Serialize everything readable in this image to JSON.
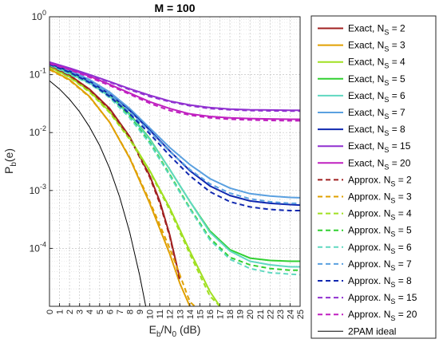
{
  "chart_data": {
    "type": "line",
    "title": "M = 100",
    "xlabel": {
      "main": "E",
      "sub1": "b",
      "mid": "/N",
      "sub2": "0",
      "tail": " (dB)"
    },
    "ylabel": {
      "main": "P",
      "sub": "b",
      "tail": "(e)"
    },
    "xlim": [
      0,
      25
    ],
    "ylim": [
      1e-05,
      1
    ],
    "yscale": "log",
    "grid": true,
    "legend_position": "outside-right",
    "x_ticks": [
      "0",
      "1",
      "2",
      "3",
      "4",
      "5",
      "6",
      "7",
      "8",
      "9",
      "10",
      "11",
      "12",
      "13",
      "14",
      "15",
      "16",
      "17",
      "18",
      "19",
      "20",
      "21",
      "22",
      "23",
      "24",
      "25"
    ],
    "y_ticks": [
      {
        "base": "10",
        "exp": "0",
        "value": 1
      },
      {
        "base": "10",
        "exp": "-1",
        "value": 0.1
      },
      {
        "base": "10",
        "exp": "-2",
        "value": 0.01
      },
      {
        "base": "10",
        "exp": "-3",
        "value": 0.001
      },
      {
        "base": "10",
        "exp": "-4",
        "value": 0.0001
      }
    ],
    "series": [
      {
        "name": {
          "main": "Exact,  N",
          "sub": "S",
          "tail": " = 2"
        },
        "color": "#a02020",
        "dash": false,
        "width": 2,
        "x": [
          0,
          2,
          4,
          6,
          8,
          10,
          11,
          12,
          13
        ],
        "y": [
          0.145,
          0.098,
          0.056,
          0.026,
          0.0085,
          0.0018,
          0.00065,
          0.00017,
          3e-05
        ]
      },
      {
        "name": {
          "main": "Exact,  N",
          "sub": "S",
          "tail": " = 3"
        },
        "color": "#e0a000",
        "dash": false,
        "width": 2,
        "x": [
          0,
          2,
          4,
          6,
          8,
          10,
          12,
          13,
          14
        ],
        "y": [
          0.125,
          0.082,
          0.042,
          0.015,
          0.0036,
          0.0006,
          8e-05,
          2.5e-05,
          1e-05
        ]
      },
      {
        "name": {
          "main": "Exact,  N",
          "sub": "S",
          "tail": " = 4"
        },
        "color": "#a0e020",
        "dash": false,
        "width": 2,
        "x": [
          0,
          2,
          4,
          6,
          8,
          10,
          12,
          14,
          16,
          17
        ],
        "y": [
          0.135,
          0.092,
          0.052,
          0.023,
          0.008,
          0.0022,
          0.0005,
          9e-05,
          1.8e-05,
          1e-05
        ]
      },
      {
        "name": {
          "main": "Exact,  N",
          "sub": "S",
          "tail": " = 5"
        },
        "color": "#30d030",
        "dash": false,
        "width": 2,
        "x": [
          0,
          4,
          6,
          8,
          10,
          12,
          14,
          16,
          18,
          20,
          22,
          24,
          25
        ],
        "y": [
          0.155,
          0.075,
          0.044,
          0.021,
          0.0078,
          0.0023,
          0.00065,
          0.0002,
          9.5e-05,
          6.8e-05,
          6.2e-05,
          6e-05,
          6e-05
        ]
      },
      {
        "name": {
          "main": "Exact,  N",
          "sub": "S",
          "tail": " = 6"
        },
        "color": "#60d8c0",
        "dash": false,
        "width": 2,
        "x": [
          0,
          4,
          6,
          8,
          10,
          12,
          14,
          16,
          18,
          20,
          22,
          24,
          25
        ],
        "y": [
          0.15,
          0.072,
          0.042,
          0.02,
          0.0076,
          0.0023,
          0.00065,
          0.00019,
          9e-05,
          6e-05,
          5.2e-05,
          4.8e-05,
          4.8e-05
        ]
      },
      {
        "name": {
          "main": "Exact,  N",
          "sub": "S",
          "tail": " = 7"
        },
        "color": "#5aa0e0",
        "dash": false,
        "width": 2,
        "x": [
          0,
          2,
          4,
          6,
          8,
          10,
          12,
          14,
          16,
          18,
          20,
          22,
          24,
          25
        ],
        "y": [
          0.16,
          0.12,
          0.082,
          0.05,
          0.026,
          0.012,
          0.0055,
          0.0028,
          0.0016,
          0.0011,
          0.00088,
          0.0008,
          0.00076,
          0.00075
        ]
      },
      {
        "name": {
          "main": "Exact,  N",
          "sub": "S",
          "tail": " = 8"
        },
        "color": "#1028b0",
        "dash": false,
        "width": 2,
        "x": [
          0,
          2,
          4,
          6,
          8,
          10,
          12,
          14,
          16,
          18,
          20,
          22,
          24,
          25
        ],
        "y": [
          0.155,
          0.115,
          0.077,
          0.046,
          0.024,
          0.011,
          0.0048,
          0.0022,
          0.0012,
          0.00082,
          0.00066,
          0.0006,
          0.00057,
          0.00056
        ]
      },
      {
        "name": {
          "main": "Exact,  N",
          "sub": "S",
          "tail": " = 15"
        },
        "color": "#9030d0",
        "dash": false,
        "width": 2,
        "x": [
          0,
          2,
          4,
          6,
          8,
          10,
          12,
          14,
          16,
          18,
          20,
          22,
          24,
          25
        ],
        "y": [
          0.165,
          0.13,
          0.1,
          0.076,
          0.057,
          0.044,
          0.035,
          0.03,
          0.027,
          0.0255,
          0.0248,
          0.0245,
          0.0243,
          0.0243
        ]
      },
      {
        "name": {
          "main": "Exact,  N",
          "sub": "S",
          "tail": " = 20"
        },
        "color": "#c020c0",
        "dash": false,
        "width": 2,
        "x": [
          0,
          2,
          4,
          6,
          8,
          10,
          12,
          14,
          16,
          18,
          20,
          22,
          24,
          25
        ],
        "y": [
          0.16,
          0.125,
          0.094,
          0.068,
          0.048,
          0.034,
          0.026,
          0.021,
          0.019,
          0.018,
          0.0175,
          0.0172,
          0.017,
          0.017
        ]
      },
      {
        "name": {
          "main": "Approx.  N",
          "sub": "S",
          "tail": " = 2"
        },
        "color": "#a02020",
        "dash": true,
        "width": 2,
        "x": [
          0,
          2,
          4,
          6,
          8,
          10,
          11,
          12,
          13
        ],
        "y": [
          0.142,
          0.096,
          0.055,
          0.025,
          0.0082,
          0.0017,
          0.0006,
          0.00016,
          2.8e-05
        ]
      },
      {
        "name": {
          "main": "Approx.  N",
          "sub": "S",
          "tail": " = 3"
        },
        "color": "#e0a000",
        "dash": true,
        "width": 2,
        "x": [
          0,
          2,
          4,
          6,
          8,
          10,
          12,
          13,
          14,
          14.5
        ],
        "y": [
          0.122,
          0.08,
          0.041,
          0.015,
          0.0037,
          0.00065,
          0.0001,
          3.5e-05,
          1.2e-05,
          1e-05
        ]
      },
      {
        "name": {
          "main": "Approx.  N",
          "sub": "S",
          "tail": " = 4"
        },
        "color": "#a0e020",
        "dash": true,
        "width": 2,
        "x": [
          0,
          2,
          4,
          6,
          8,
          10,
          12,
          14,
          16,
          17
        ],
        "y": [
          0.132,
          0.09,
          0.05,
          0.022,
          0.0076,
          0.0021,
          0.00046,
          8e-05,
          1.5e-05,
          1e-05
        ]
      },
      {
        "name": {
          "main": "Approx.  N",
          "sub": "S",
          "tail": " = 5"
        },
        "color": "#30d030",
        "dash": true,
        "width": 2,
        "x": [
          0,
          4,
          6,
          8,
          10,
          12,
          14,
          16,
          18,
          20,
          22,
          24,
          25
        ],
        "y": [
          0.15,
          0.072,
          0.042,
          0.019,
          0.0068,
          0.0019,
          0.0005,
          0.00015,
          7e-05,
          5.2e-05,
          4.5e-05,
          4.2e-05,
          4.2e-05
        ]
      },
      {
        "name": {
          "main": "Approx.  N",
          "sub": "S",
          "tail": " = 6"
        },
        "color": "#60d8c0",
        "dash": true,
        "width": 2,
        "x": [
          0,
          4,
          6,
          8,
          10,
          12,
          14,
          16,
          18,
          20,
          22,
          24,
          25
        ],
        "y": [
          0.146,
          0.07,
          0.04,
          0.018,
          0.0065,
          0.0018,
          0.00048,
          0.00014,
          6.5e-05,
          4.5e-05,
          3.8e-05,
          3.6e-05,
          3.5e-05
        ]
      },
      {
        "name": {
          "main": "Approx.  N",
          "sub": "S",
          "tail": " = 7"
        },
        "color": "#5aa0e0",
        "dash": true,
        "width": 2,
        "x": [
          0,
          2,
          4,
          6,
          8,
          10,
          12,
          14,
          16,
          18,
          20,
          22,
          24,
          25
        ],
        "y": [
          0.155,
          0.116,
          0.078,
          0.046,
          0.023,
          0.0105,
          0.0047,
          0.0023,
          0.0013,
          0.0009,
          0.00072,
          0.00064,
          0.0006,
          0.0006
        ]
      },
      {
        "name": {
          "main": "Approx.  N",
          "sub": "S",
          "tail": " = 8"
        },
        "color": "#1028b0",
        "dash": true,
        "width": 2,
        "x": [
          0,
          2,
          4,
          6,
          8,
          10,
          12,
          14,
          16,
          18,
          20,
          22,
          24,
          25
        ],
        "y": [
          0.15,
          0.11,
          0.073,
          0.042,
          0.021,
          0.0095,
          0.004,
          0.0018,
          0.00095,
          0.00064,
          0.00052,
          0.00047,
          0.00045,
          0.00045
        ]
      },
      {
        "name": {
          "main": "Approx.  N",
          "sub": "S",
          "tail": " = 15"
        },
        "color": "#9030d0",
        "dash": true,
        "width": 2,
        "x": [
          0,
          2,
          4,
          6,
          8,
          10,
          12,
          14,
          16,
          18,
          20,
          22,
          24,
          25
        ],
        "y": [
          0.16,
          0.127,
          0.098,
          0.074,
          0.055,
          0.042,
          0.034,
          0.029,
          0.026,
          0.0248,
          0.024,
          0.0237,
          0.0235,
          0.0235
        ]
      },
      {
        "name": {
          "main": "Approx.  N",
          "sub": "S",
          "tail": " = 20"
        },
        "color": "#c020c0",
        "dash": true,
        "width": 2,
        "x": [
          0,
          2,
          4,
          6,
          8,
          10,
          12,
          14,
          16,
          18,
          20,
          22,
          24,
          25
        ],
        "y": [
          0.155,
          0.122,
          0.09,
          0.065,
          0.046,
          0.032,
          0.024,
          0.02,
          0.018,
          0.017,
          0.0165,
          0.0162,
          0.016,
          0.016
        ]
      },
      {
        "name": {
          "main": "2PAM ideal",
          "sub": "",
          "tail": ""
        },
        "color": "#000000",
        "dash": false,
        "width": 1,
        "x": [
          0,
          1,
          2,
          3,
          4,
          5,
          6,
          7,
          8,
          9,
          9.6
        ],
        "y": [
          0.0786,
          0.0563,
          0.0375,
          0.0229,
          0.0125,
          0.006,
          0.0024,
          0.00077,
          0.00019,
          3.4e-05,
          1e-05
        ]
      }
    ]
  }
}
